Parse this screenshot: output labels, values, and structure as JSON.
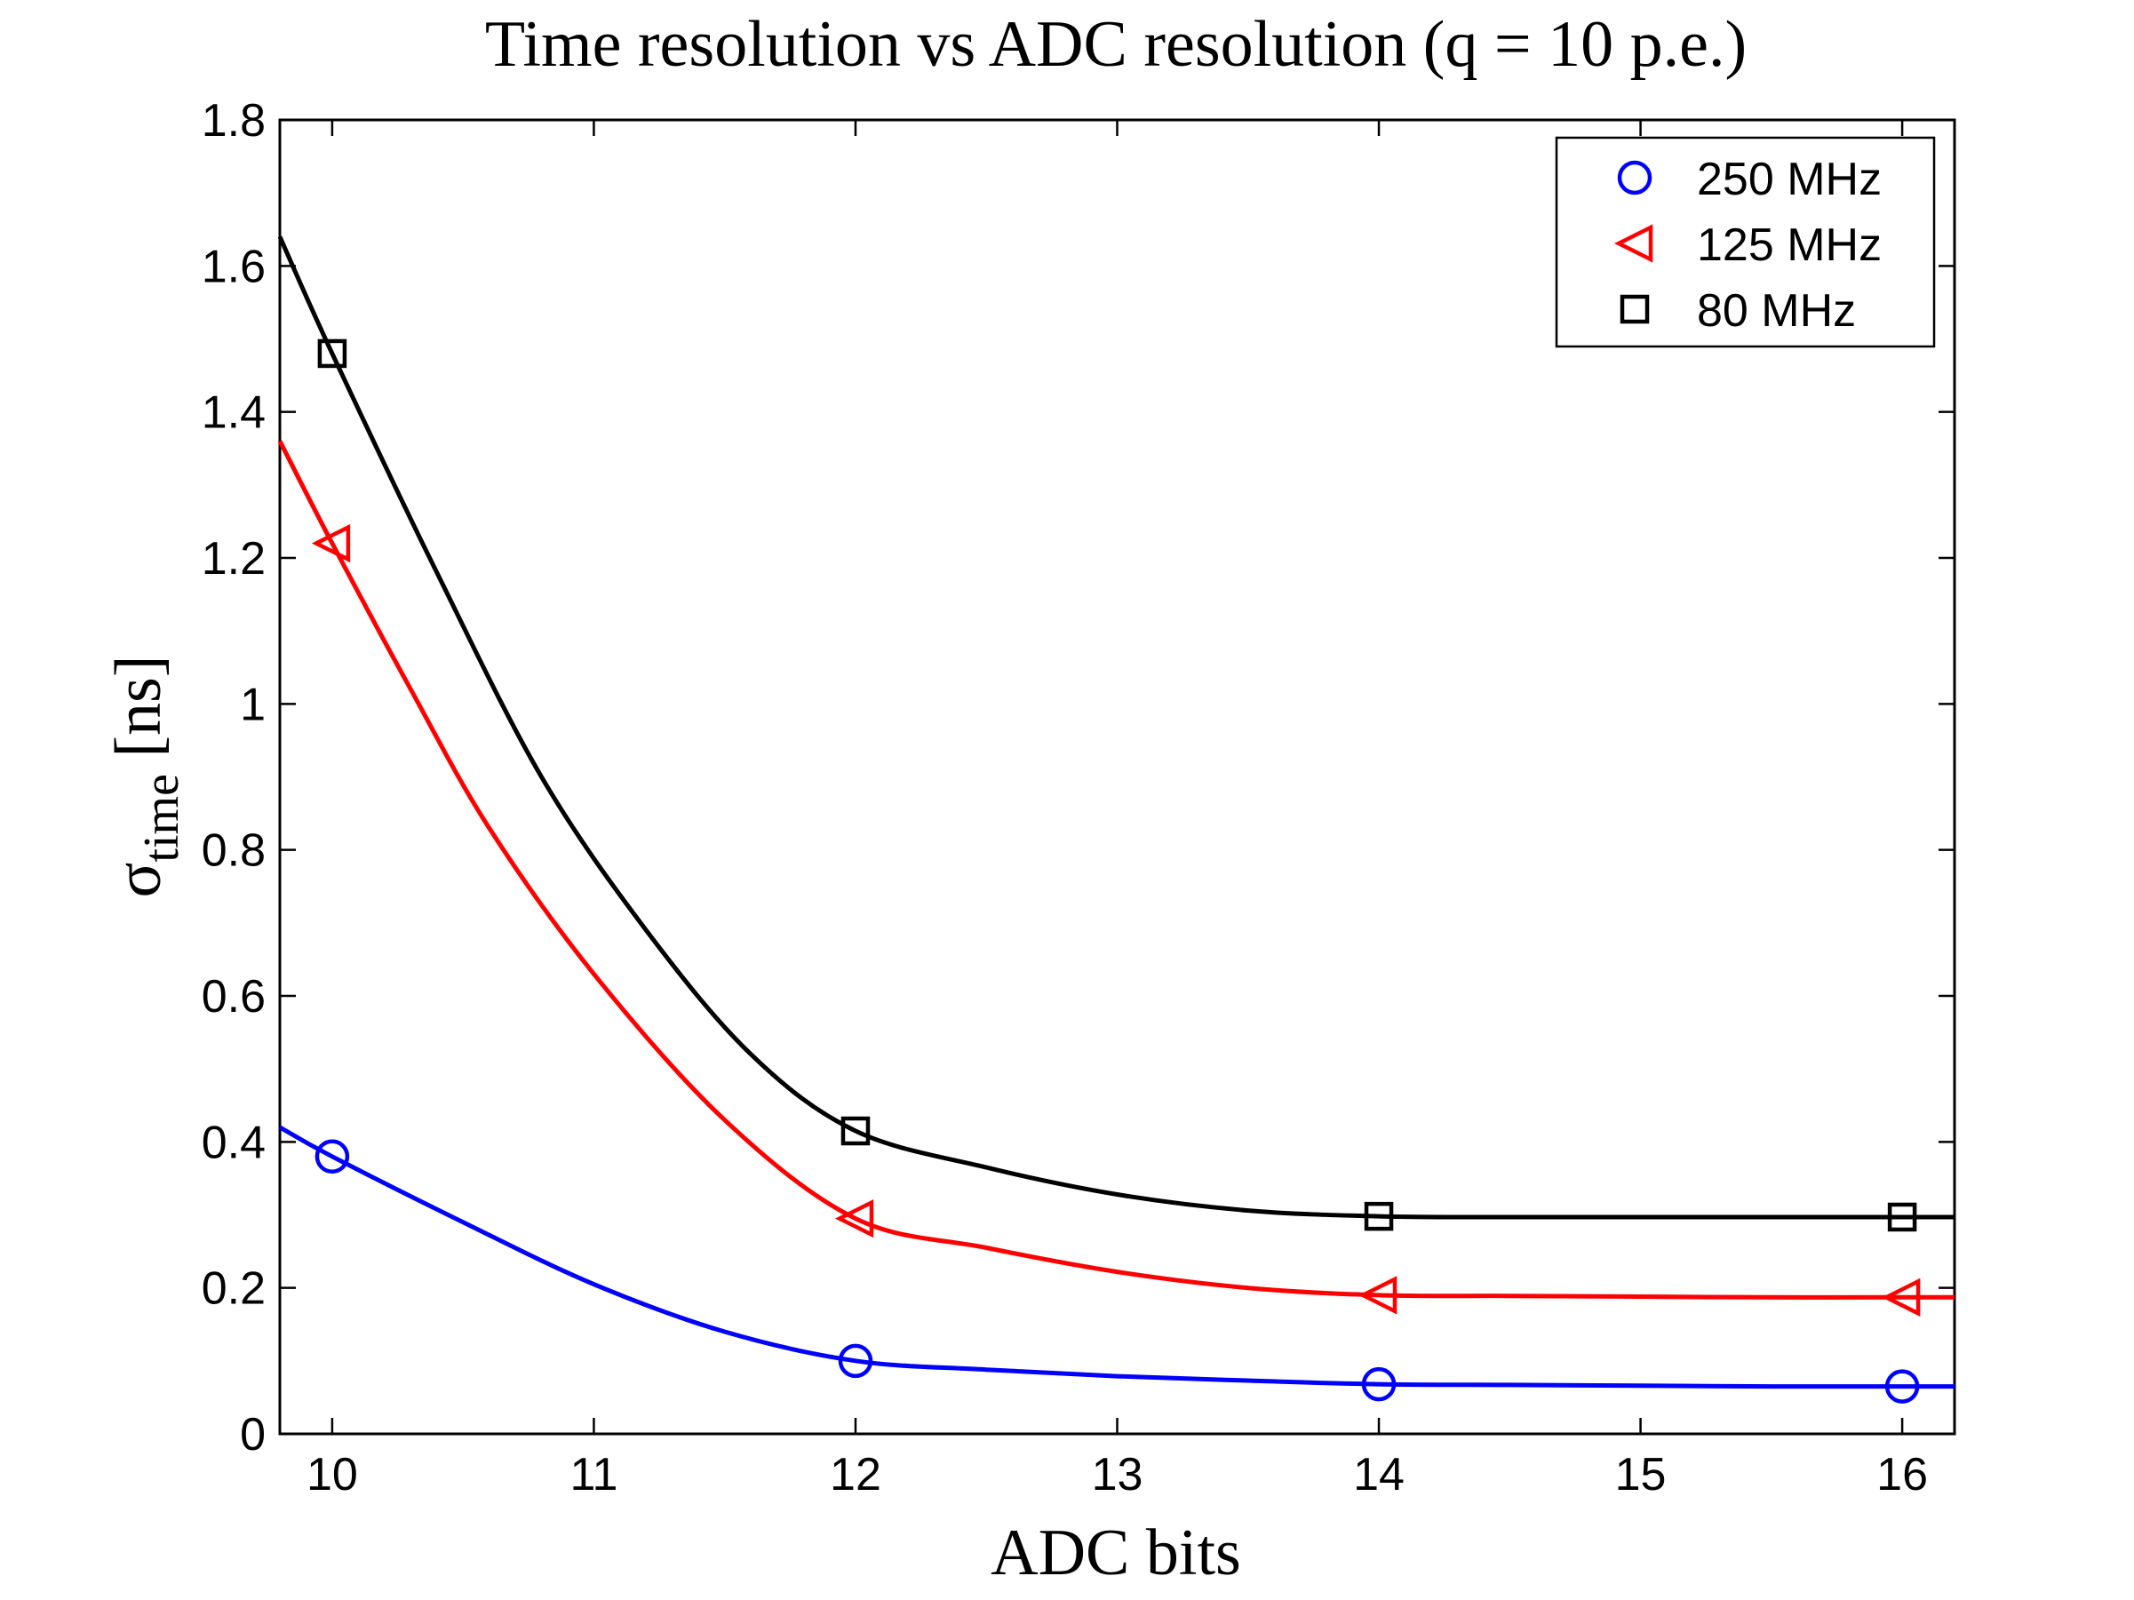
{
  "chart_data": {
    "type": "line",
    "title": "Time resolution vs ADC resolution (q = 10 p.e.)",
    "xlabel": "ADC bits",
    "ylabel": {
      "main": "σ",
      "subscript": "time",
      "unit": "[ns]"
    },
    "xlim": [
      9.8,
      16.2
    ],
    "ylim": [
      0,
      1.8
    ],
    "xticks": [
      10,
      11,
      12,
      13,
      14,
      15,
      16
    ],
    "yticks": [
      0,
      0.2,
      0.4,
      0.6,
      0.8,
      1,
      1.2,
      1.4,
      1.6,
      1.8
    ],
    "ytick_labels": [
      "0",
      "0.2",
      "0.4",
      "0.6",
      "0.8",
      "1",
      "1.2",
      "1.4",
      "1.6",
      "1.8"
    ],
    "legend_position": "top-right",
    "series": [
      {
        "name": "250 MHz",
        "color": "#0000ff",
        "marker": "circle",
        "points": [
          [
            10,
            0.38
          ],
          [
            12,
            0.1
          ],
          [
            14,
            0.068
          ],
          [
            16,
            0.065
          ]
        ],
        "curve": [
          [
            9.8,
            0.42
          ],
          [
            10,
            0.38
          ],
          [
            10.5,
            0.29
          ],
          [
            11,
            0.205
          ],
          [
            11.5,
            0.14
          ],
          [
            12,
            0.1
          ],
          [
            12.5,
            0.088
          ],
          [
            13,
            0.079
          ],
          [
            13.5,
            0.073
          ],
          [
            14,
            0.068
          ],
          [
            14.5,
            0.067
          ],
          [
            15,
            0.066
          ],
          [
            15.5,
            0.065
          ],
          [
            16,
            0.065
          ],
          [
            16.2,
            0.065
          ]
        ]
      },
      {
        "name": "125 MHz",
        "color": "#ff0000",
        "marker": "triangle-left",
        "points": [
          [
            10,
            1.22
          ],
          [
            12,
            0.295
          ],
          [
            14,
            0.19
          ],
          [
            16,
            0.187
          ]
        ],
        "curve": [
          [
            9.8,
            1.36
          ],
          [
            10,
            1.22
          ],
          [
            10.3,
            1.02
          ],
          [
            10.6,
            0.83
          ],
          [
            11,
            0.63
          ],
          [
            11.5,
            0.43
          ],
          [
            12,
            0.295
          ],
          [
            12.5,
            0.255
          ],
          [
            13,
            0.222
          ],
          [
            13.5,
            0.2
          ],
          [
            14,
            0.19
          ],
          [
            14.5,
            0.189
          ],
          [
            15,
            0.188
          ],
          [
            15.5,
            0.187
          ],
          [
            16,
            0.187
          ],
          [
            16.2,
            0.187
          ]
        ]
      },
      {
        "name": "80 MHz",
        "color": "#000000",
        "marker": "square",
        "points": [
          [
            10,
            1.48
          ],
          [
            12,
            0.415
          ],
          [
            14,
            0.298
          ],
          [
            16,
            0.297
          ]
        ],
        "curve": [
          [
            9.8,
            1.64
          ],
          [
            10,
            1.48
          ],
          [
            10.4,
            1.18
          ],
          [
            10.8,
            0.9
          ],
          [
            11.2,
            0.69
          ],
          [
            11.6,
            0.52
          ],
          [
            12,
            0.415
          ],
          [
            12.5,
            0.365
          ],
          [
            13,
            0.328
          ],
          [
            13.5,
            0.306
          ],
          [
            14,
            0.298
          ],
          [
            14.5,
            0.297
          ],
          [
            15,
            0.297
          ],
          [
            15.5,
            0.297
          ],
          [
            16,
            0.297
          ],
          [
            16.2,
            0.297
          ]
        ]
      }
    ]
  }
}
